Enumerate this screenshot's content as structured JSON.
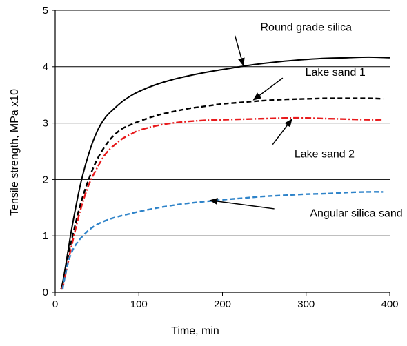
{
  "chart_data": {
    "type": "line",
    "xlabel": "Time, min",
    "ylabel": "Tensile strength, MPa x10",
    "xlim": [
      0,
      400
    ],
    "ylim": [
      0,
      5
    ],
    "x_ticks": [
      0,
      100,
      200,
      300,
      400
    ],
    "y_ticks": [
      0,
      1,
      2,
      3,
      4,
      5
    ],
    "grid": "horizontal",
    "legend": "none",
    "series": [
      {
        "name": "Round grade silica",
        "style": "solid",
        "color": "#000000",
        "x": [
          7,
          10,
          15,
          20,
          30,
          40,
          50,
          60,
          70,
          80,
          90,
          100,
          120,
          140,
          160,
          180,
          200,
          225,
          250,
          275,
          300,
          325,
          350,
          375,
          400
        ],
        "y": [
          0.05,
          0.25,
          0.7,
          1.15,
          1.9,
          2.45,
          2.85,
          3.1,
          3.25,
          3.38,
          3.48,
          3.56,
          3.68,
          3.77,
          3.84,
          3.9,
          3.95,
          4.01,
          4.06,
          4.1,
          4.13,
          4.15,
          4.16,
          4.17,
          4.16
        ]
      },
      {
        "name": "Lake sand 1",
        "style": "dashed",
        "color": "#000000",
        "x": [
          7,
          10,
          15,
          20,
          30,
          40,
          50,
          60,
          70,
          80,
          90,
          100,
          120,
          140,
          160,
          180,
          200,
          225,
          250,
          275,
          300,
          325,
          350,
          375,
          392
        ],
        "y": [
          0.05,
          0.2,
          0.6,
          0.95,
          1.55,
          2.0,
          2.35,
          2.6,
          2.78,
          2.9,
          2.97,
          3.03,
          3.13,
          3.2,
          3.26,
          3.3,
          3.34,
          3.37,
          3.4,
          3.42,
          3.43,
          3.44,
          3.44,
          3.44,
          3.43
        ]
      },
      {
        "name": "Lake sand 2",
        "style": "dash-dot",
        "color": "#e8191b",
        "x": [
          8,
          10,
          15,
          20,
          30,
          40,
          50,
          60,
          70,
          80,
          90,
          100,
          120,
          140,
          160,
          180,
          200,
          225,
          250,
          275,
          300,
          325,
          350,
          375,
          392
        ],
        "y": [
          0.05,
          0.15,
          0.5,
          0.85,
          1.45,
          1.9,
          2.2,
          2.45,
          2.6,
          2.72,
          2.8,
          2.87,
          2.95,
          3.0,
          3.03,
          3.05,
          3.06,
          3.07,
          3.08,
          3.09,
          3.09,
          3.08,
          3.07,
          3.06,
          3.06
        ]
      },
      {
        "name": "Angular silica sand",
        "style": "dashed",
        "color": "#2e83c9",
        "x": [
          9,
          10,
          15,
          20,
          25,
          30,
          40,
          50,
          60,
          70,
          80,
          100,
          120,
          140,
          160,
          180,
          200,
          225,
          250,
          275,
          300,
          325,
          350,
          375,
          392
        ],
        "y": [
          0.05,
          0.15,
          0.5,
          0.72,
          0.85,
          0.95,
          1.1,
          1.2,
          1.27,
          1.32,
          1.36,
          1.43,
          1.49,
          1.54,
          1.58,
          1.61,
          1.64,
          1.67,
          1.7,
          1.72,
          1.74,
          1.75,
          1.77,
          1.78,
          1.78
        ]
      }
    ],
    "annotations": [
      {
        "text": "Round grade silica",
        "series": "Round grade silica",
        "text_at": [
          300,
          4.7
        ],
        "arrow_from": [
          215,
          4.55
        ],
        "arrow_to": [
          225,
          4.02
        ]
      },
      {
        "text": "Lake sand 1",
        "series": "Lake sand 1",
        "text_at": [
          335,
          3.9
        ],
        "arrow_from": [
          272,
          3.8
        ],
        "arrow_to": [
          237,
          3.41
        ]
      },
      {
        "text": "Lake sand 2",
        "series": "Lake sand 2",
        "text_at": [
          322,
          2.45
        ],
        "arrow_from": [
          260,
          2.62
        ],
        "arrow_to": [
          283,
          3.07
        ]
      },
      {
        "text": "Angular silica sand",
        "series": "Angular silica sand",
        "text_at": [
          360,
          1.4
        ],
        "arrow_from": [
          262,
          1.48
        ],
        "arrow_to": [
          185,
          1.63
        ]
      }
    ]
  }
}
